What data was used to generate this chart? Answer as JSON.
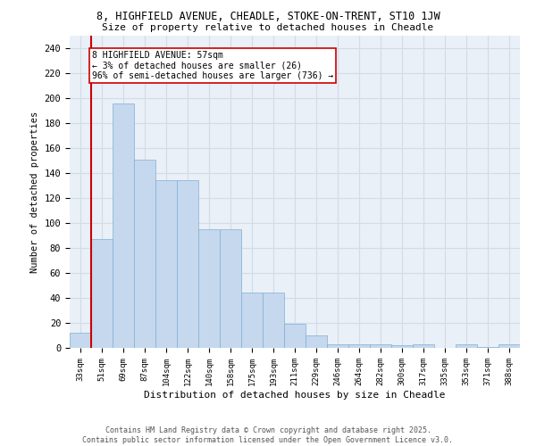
{
  "title_line1": "8, HIGHFIELD AVENUE, CHEADLE, STOKE-ON-TRENT, ST10 1JW",
  "title_line2": "Size of property relative to detached houses in Cheadle",
  "xlabel": "Distribution of detached houses by size in Cheadle",
  "ylabel": "Number of detached properties",
  "categories": [
    "33sqm",
    "51sqm",
    "69sqm",
    "87sqm",
    "104sqm",
    "122sqm",
    "140sqm",
    "158sqm",
    "175sqm",
    "193sqm",
    "211sqm",
    "229sqm",
    "246sqm",
    "264sqm",
    "282sqm",
    "300sqm",
    "317sqm",
    "335sqm",
    "353sqm",
    "371sqm",
    "388sqm"
  ],
  "values": [
    12,
    87,
    196,
    151,
    134,
    134,
    95,
    95,
    44,
    44,
    19,
    10,
    3,
    3,
    3,
    2,
    3,
    0,
    3,
    1,
    3
  ],
  "bar_color": "#c5d8ed",
  "bar_edge_color": "#7fafd6",
  "grid_color": "#d0dce8",
  "bg_color": "#eaf0f7",
  "property_line_color": "#cc0000",
  "annotation_text": "8 HIGHFIELD AVENUE: 57sqm\n← 3% of detached houses are smaller (26)\n96% of semi-detached houses are larger (736) →",
  "annotation_box_color": "#ffffff",
  "annotation_border_color": "#cc0000",
  "footer_line1": "Contains HM Land Registry data © Crown copyright and database right 2025.",
  "footer_line2": "Contains public sector information licensed under the Open Government Licence v3.0.",
  "ylim": [
    0,
    250
  ],
  "yticks": [
    0,
    20,
    40,
    60,
    80,
    100,
    120,
    140,
    160,
    180,
    200,
    220,
    240
  ]
}
